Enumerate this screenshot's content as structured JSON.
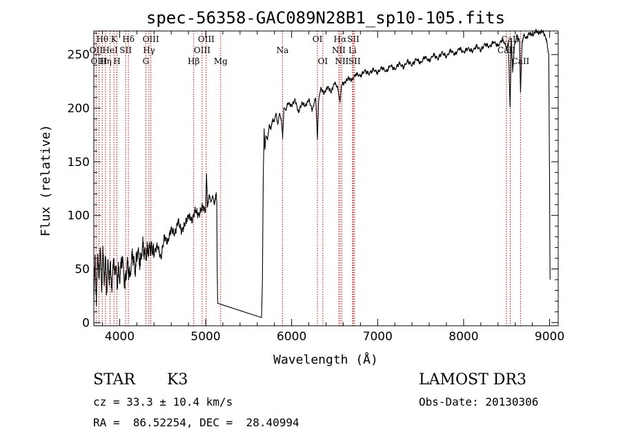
{
  "chart_data": {
    "type": "line",
    "title": "spec-56358-GAC089N28B1_sp10-105.fits",
    "xlabel": "Wavelength (Å)",
    "ylabel": "Flux (relative)",
    "xlim": [
      3700,
      9100
    ],
    "ylim": [
      -3,
      272
    ],
    "xticks": [
      4000,
      5000,
      6000,
      7000,
      8000,
      9000
    ],
    "yticks": [
      0,
      50,
      100,
      150,
      200,
      250
    ],
    "grid": false,
    "series": [
      {
        "name": "spectrum",
        "x": [
          3700,
          3715,
          3730,
          3745,
          3760,
          3775,
          3790,
          3805,
          3820,
          3835,
          3850,
          3865,
          3880,
          3895,
          3910,
          3925,
          3940,
          3955,
          3970,
          3985,
          4000,
          4030,
          4060,
          4090,
          4120,
          4150,
          4180,
          4210,
          4240,
          4270,
          4300,
          4330,
          4360,
          4400,
          4440,
          4480,
          4520,
          4560,
          4600,
          4640,
          4680,
          4720,
          4760,
          4800,
          4840,
          4880,
          4920,
          4960,
          5000,
          5010,
          5020,
          5040,
          5060,
          5080,
          5100,
          5120,
          5130,
          5135,
          5140,
          5650,
          5660,
          5670,
          5680,
          5690,
          5700,
          5720,
          5740,
          5760,
          5780,
          5800,
          5820,
          5840,
          5860,
          5880,
          5895,
          5910,
          5930,
          5960,
          6000,
          6040,
          6080,
          6120,
          6160,
          6200,
          6240,
          6280,
          6300,
          6310,
          6320,
          6340,
          6380,
          6420,
          6460,
          6500,
          6540,
          6563,
          6580,
          6620,
          6660,
          6700,
          6750,
          6800,
          6850,
          6900,
          6950,
          7000,
          7050,
          7100,
          7150,
          7200,
          7250,
          7300,
          7350,
          7400,
          7450,
          7500,
          7550,
          7600,
          7650,
          7700,
          7750,
          7800,
          7850,
          7900,
          7950,
          8000,
          8050,
          8100,
          8150,
          8200,
          8250,
          8300,
          8350,
          8400,
          8450,
          8480,
          8500,
          8520,
          8540,
          8555,
          8570,
          8590,
          8620,
          8650,
          8662,
          8680,
          8700,
          8730,
          8760,
          8800,
          8840,
          8880,
          8920,
          8960,
          8990,
          9000,
          9005
        ],
        "y": [
          20,
          60,
          15,
          70,
          35,
          75,
          30,
          65,
          40,
          60,
          28,
          58,
          38,
          55,
          25,
          62,
          45,
          55,
          35,
          50,
          40,
          62,
          35,
          55,
          42,
          65,
          48,
          68,
          55,
          72,
          62,
          68,
          70,
          65,
          72,
          60,
          80,
          75,
          88,
          82,
          95,
          85,
          92,
          100,
          95,
          105,
          100,
          108,
          105,
          140,
          110,
          118,
          112,
          120,
          108,
          122,
          112,
          45,
          18,
          3,
          40,
          135,
          180,
          160,
          175,
          170,
          185,
          180,
          190,
          188,
          195,
          185,
          195,
          190,
          172,
          200,
          198,
          205,
          202,
          208,
          196,
          205,
          202,
          208,
          198,
          210,
          170,
          200,
          212,
          218,
          214,
          220,
          215,
          224,
          218,
          205,
          222,
          224,
          228,
          226,
          232,
          230,
          235,
          232,
          236,
          233,
          238,
          234,
          240,
          236,
          242,
          238,
          244,
          240,
          246,
          242,
          248,
          244,
          250,
          246,
          252,
          248,
          254,
          250,
          256,
          252,
          256,
          253,
          258,
          254,
          260,
          257,
          262,
          258,
          264,
          260,
          255,
          262,
          200,
          265,
          235,
          258,
          268,
          262,
          215,
          262,
          268,
          265,
          270,
          268,
          272,
          270,
          272,
          265,
          250,
          130,
          40
        ]
      }
    ],
    "lines": [
      {
        "label": "Hθ",
        "row": 1,
        "x": 3798
      },
      {
        "label": "OII",
        "row": 2,
        "x": 3727
      },
      {
        "label": "OIII",
        "row": 3,
        "x": 3760
      },
      {
        "label": "Hη",
        "row": 3,
        "x": 3835
      },
      {
        "label": "HeI",
        "row": 2,
        "x": 3889
      },
      {
        "label": "K",
        "row": 1,
        "x": 3934
      },
      {
        "label": "H",
        "row": 3,
        "x": 3969
      },
      {
        "label": "SII",
        "row": 2,
        "x": 4070
      },
      {
        "label": "Hδ",
        "row": 1,
        "x": 4102
      },
      {
        "label": "OIII",
        "row": 1,
        "x": 4363
      },
      {
        "label": "Hγ",
        "row": 2,
        "x": 4341
      },
      {
        "label": "G",
        "row": 3,
        "x": 4305
      },
      {
        "label": "Hβ",
        "row": 3,
        "x": 4861
      },
      {
        "label": "OIII",
        "row": 1,
        "x": 5007
      },
      {
        "label": "OIII",
        "row": 2,
        "x": 4959
      },
      {
        "label": "Mg",
        "row": 3,
        "x": 5175
      },
      {
        "label": "Na",
        "row": 2,
        "x": 5894
      },
      {
        "label": "OI",
        "row": 1,
        "x": 6300
      },
      {
        "label": "OI",
        "row": 3,
        "x": 6363
      },
      {
        "label": "Hα",
        "row": 1,
        "x": 6563
      },
      {
        "label": "NII",
        "row": 2,
        "x": 6548
      },
      {
        "label": "NII",
        "row": 3,
        "x": 6584
      },
      {
        "label": "SII",
        "row": 1,
        "x": 6717
      },
      {
        "label": "Li",
        "row": 2,
        "x": 6708
      },
      {
        "label": "SII",
        "row": 3,
        "x": 6731
      },
      {
        "label": "CaII",
        "row": 1,
        "x": 8542
      },
      {
        "label": "CaII",
        "row": 2,
        "x": 8498
      },
      {
        "label": "CaII",
        "row": 3,
        "x": 8662
      }
    ]
  },
  "info": {
    "class": "STAR",
    "subclass": "K3",
    "survey": "LAMOST DR3",
    "cz": "cz = 33.3 ± 10.4 km/s",
    "coords": "RA =  86.52254, DEC =  28.40994",
    "obs_date": "Obs-Date: 20130306"
  },
  "colors": {
    "line": "#000000",
    "marker": "#cc0000"
  }
}
